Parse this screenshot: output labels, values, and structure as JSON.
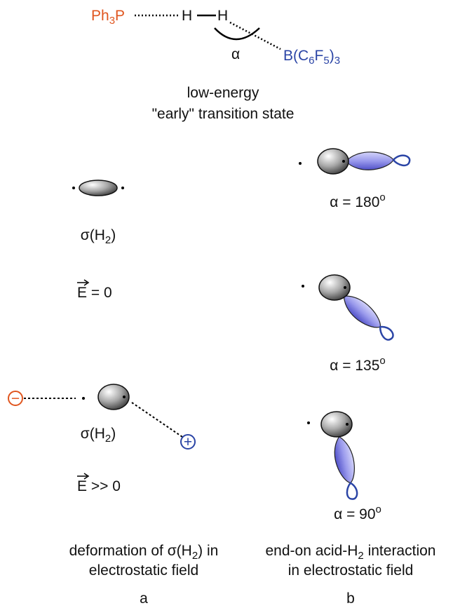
{
  "top": {
    "phosphine": [
      "Ph",
      "3",
      "P"
    ],
    "h1": "H",
    "h2": "H",
    "alpha": "α",
    "borane": [
      "B(C",
      "6",
      "F",
      "5",
      ")",
      "3"
    ],
    "caption": [
      "low-energy",
      "\"early\" transition state"
    ]
  },
  "panel_a": {
    "sigma1": [
      "σ(H",
      "2",
      ")"
    ],
    "field1": [
      "E",
      "= 0"
    ],
    "minus": "−",
    "plus": "+",
    "sigma2": [
      "σ(H",
      "2",
      ")"
    ],
    "field2": [
      "E",
      ">> 0"
    ],
    "caption": [
      "deformation of σ(H",
      "2",
      ") in",
      "electrostatic field"
    ],
    "label": "a"
  },
  "panel_b": {
    "angles": [
      [
        "α = 180",
        "o"
      ],
      [
        "α = 135",
        "o"
      ],
      [
        "α = 90",
        "o"
      ]
    ],
    "caption": [
      "end-on acid-H",
      "2",
      " interaction",
      "in electrostatic field"
    ],
    "label": "b"
  }
}
